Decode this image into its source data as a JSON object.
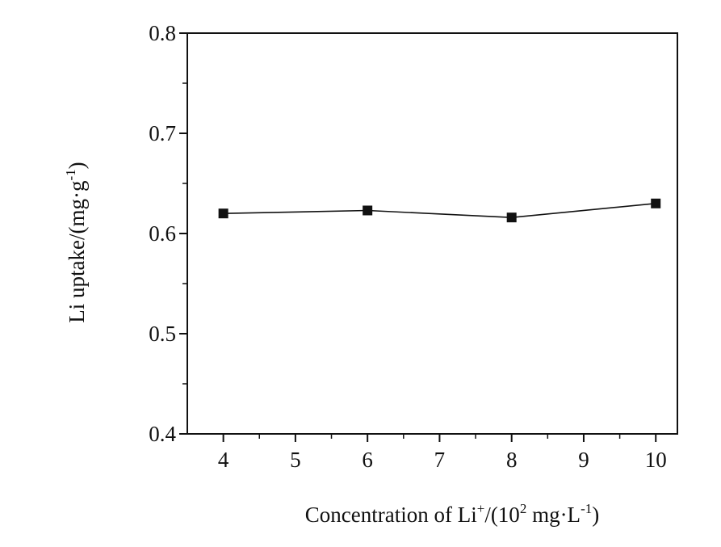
{
  "chart_data": {
    "type": "line",
    "title": "",
    "xlabel": {
      "main": "Concentration of Li",
      "sup1": "+",
      "mid": "/(10",
      "sup2": "2",
      "unit": " mg·L",
      "sup3": "-1",
      "end": ")"
    },
    "ylabel": {
      "main": "Li uptake/(mg·g",
      "sup": "-1",
      "end": ")"
    },
    "xlim": [
      3.5,
      10.3
    ],
    "ylim": [
      0.4,
      0.8
    ],
    "xticks": [
      4,
      5,
      6,
      7,
      8,
      9,
      10
    ],
    "yticks": [
      0.4,
      0.5,
      0.6,
      0.7,
      0.8
    ],
    "xtick_labels": [
      "4",
      "5",
      "6",
      "7",
      "8",
      "9",
      "10"
    ],
    "ytick_labels": [
      "0.4",
      "0.5",
      "0.6",
      "0.7",
      "0.8"
    ],
    "grid": false,
    "legend": "none",
    "series": [
      {
        "marker": "square",
        "color": "#111111",
        "x": [
          4,
          6,
          8,
          10
        ],
        "y": [
          0.62,
          0.623,
          0.616,
          0.63
        ]
      }
    ]
  }
}
